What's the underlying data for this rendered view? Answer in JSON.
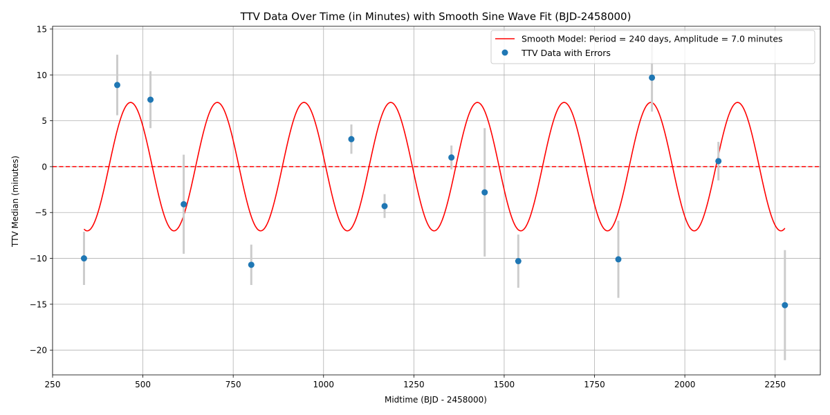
{
  "chart_data": {
    "type": "scatter",
    "title": "TTV Data Over Time (in Minutes) with Smooth Sine Wave Fit (BJD-2458000)",
    "xlabel": "Midtime (BJD - 2458000)",
    "ylabel": "TTV Median (minutes)",
    "xlim": [
      250,
      2375
    ],
    "ylim": [
      -22.7,
      15.3
    ],
    "xticks": [
      250,
      500,
      750,
      1000,
      1250,
      1500,
      1750,
      2000,
      2250
    ],
    "yticks": [
      -20,
      -15,
      -10,
      -5,
      0,
      5,
      10,
      15
    ],
    "grid": true,
    "legend_position": "top-right",
    "series": [
      {
        "name": "Smooth Model: Period = 240 days, Amplitude = 7.0 minutes",
        "kind": "line",
        "color": "#ff0000",
        "model": {
          "period": 240,
          "amplitude": 7.0,
          "phase_peak_x": 466,
          "x_range": [
            337,
            2277
          ]
        }
      },
      {
        "name": "TTV Data with Errors",
        "kind": "errorbar",
        "color": "#1f77b4",
        "error_color": "#cccccc",
        "points": [
          {
            "x": 337,
            "y": -10.0,
            "err": 2.9
          },
          {
            "x": 429,
            "y": 8.9,
            "err": 3.3
          },
          {
            "x": 521,
            "y": 7.3,
            "err": 3.1
          },
          {
            "x": 613,
            "y": -4.1,
            "err": 5.4
          },
          {
            "x": 800,
            "y": -10.7,
            "err": 2.2
          },
          {
            "x": 1077,
            "y": 3.0,
            "err": 1.6
          },
          {
            "x": 1169,
            "y": -4.3,
            "err": 1.3
          },
          {
            "x": 1354,
            "y": 1.0,
            "err": 1.3
          },
          {
            "x": 1446,
            "y": -2.8,
            "err": 7.0
          },
          {
            "x": 1539,
            "y": -10.3,
            "err": 2.9
          },
          {
            "x": 1816,
            "y": -10.1,
            "err": 4.2
          },
          {
            "x": 1909,
            "y": 9.7,
            "err": 3.7
          },
          {
            "x": 2093,
            "y": 0.6,
            "err": 2.1
          },
          {
            "x": 2277,
            "y": -15.1,
            "err": 6.0
          }
        ]
      }
    ],
    "reference_line": {
      "y": 0,
      "color": "#ff0000",
      "style": "dashed"
    }
  }
}
